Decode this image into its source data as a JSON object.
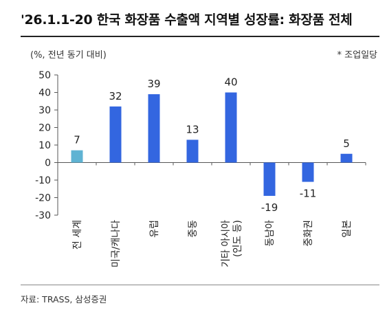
{
  "header": {
    "title": "'26.1.1-20 한국 화장품 수출액 지역별 성장률: 화장품 전체",
    "unit": "(%, 전년 동기 대비)",
    "note": "* 조업일당"
  },
  "footer": {
    "source": "자료: TRASS, 삼성증권"
  },
  "colors": {
    "highlight_bar": "#5FB3D3",
    "bar": "#3366E0",
    "axis": "#555555",
    "text": "#222222"
  },
  "chart_data": {
    "type": "bar",
    "categories": [
      "전 세계",
      "미국/캐나다",
      "유럽",
      "중동",
      "기타 아시아 (인도 등)",
      "동남아",
      "중화권",
      "일본"
    ],
    "values": [
      7,
      32,
      39,
      13,
      40,
      -19,
      -11,
      5
    ],
    "data_labels": [
      "7",
      "32",
      "39",
      "13",
      "40",
      "-19",
      "-11",
      "5"
    ],
    "y_ticks": [
      "50",
      "40",
      "30",
      "20",
      "10",
      "0",
      "-10",
      "-20",
      "-30"
    ],
    "ylim": [
      -30,
      50
    ],
    "title": "'26.1.1-20 한국 화장품 수출액 지역별 성장률: 화장품 전체",
    "ylabel": "(%, 전년 동기 대비)",
    "grid": false,
    "highlight_index": 0
  }
}
